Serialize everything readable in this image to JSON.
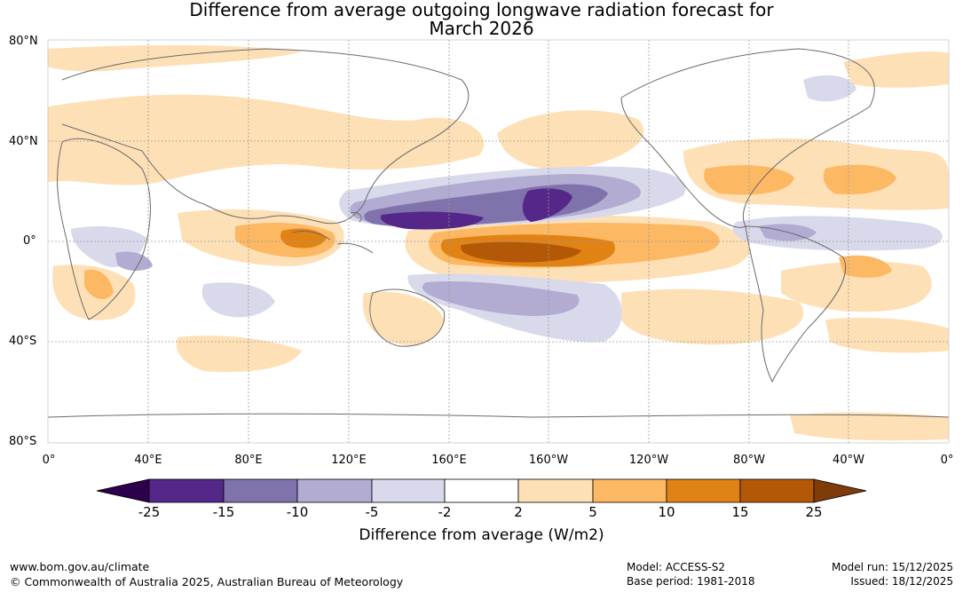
{
  "title": {
    "line1": "Difference from average outgoing longwave radiation forecast for",
    "line2": "March 2026"
  },
  "map": {
    "latitude_labels": [
      "80°N",
      "40°N",
      "0°",
      "40°S",
      "80°S"
    ],
    "longitude_labels": [
      "0°",
      "40°E",
      "80°E",
      "120°E",
      "160°E",
      "160°W",
      "120°W",
      "80°W",
      "40°W",
      "0°"
    ],
    "anomaly_regions": [
      {
        "name": "central-pacific-warm-core",
        "class": "15 to 25",
        "color": "#b35806"
      },
      {
        "name": "central-pacific-warm",
        "class": "10 to 15",
        "color": "#e08214"
      },
      {
        "name": "equatorial-pacific-band",
        "class": "5 to 10",
        "color": "#fdb863"
      },
      {
        "name": "north-pacific-cool-core",
        "class": "-25 to -15",
        "color": "#542788"
      },
      {
        "name": "north-pacific-cool",
        "class": "-15 to -10",
        "color": "#8073ac"
      },
      {
        "name": "broad-cool-areas",
        "class": "-10 to -5",
        "color": "#b2abd2"
      },
      {
        "name": "faint-cool-areas",
        "class": "-5 to -2",
        "color": "#d8daeb"
      },
      {
        "name": "faint-warm-areas",
        "class": "2 to 5",
        "color": "#fee0b6"
      }
    ]
  },
  "colorbar": {
    "labels": [
      "-25",
      "-15",
      "-10",
      "-5",
      "-2",
      "2",
      "5",
      "10",
      "15",
      "25"
    ],
    "colors": [
      "#2d004b",
      "#542788",
      "#8073ac",
      "#b2abd2",
      "#d8daeb",
      "#ffffff",
      "#fee0b6",
      "#fdb863",
      "#e08214",
      "#b35806",
      "#7f3b08"
    ],
    "title": "Difference from average (W/m2)"
  },
  "footer": {
    "website": "www.bom.gov.au/climate",
    "copyright": "© Commonwealth of Australia 2025, Australian Bureau of Meteorology",
    "model": "Model: ACCESS-S2",
    "base_period": "Base period: 1981-2018",
    "model_run": "Model run: 15/12/2025",
    "issued": "Issued: 18/12/2025"
  }
}
